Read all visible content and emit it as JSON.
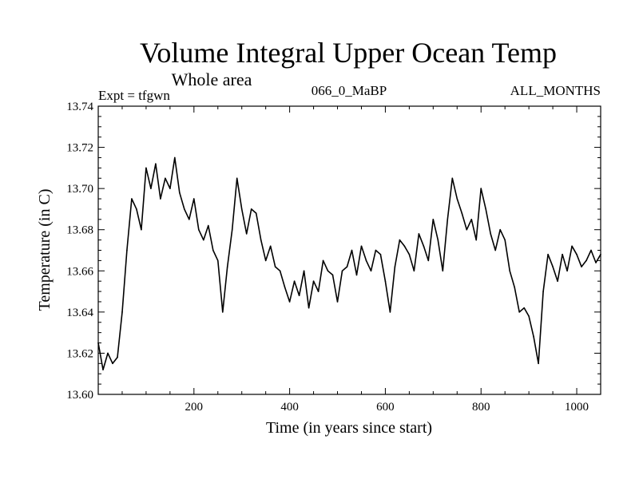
{
  "chart_data": {
    "type": "line",
    "title": "Volume Integral Upper Ocean Temp",
    "subtitle": "Whole area",
    "header_left": "Expt = tfgwn",
    "header_center": "066_0_MaBP",
    "header_right": "ALL_MONTHS",
    "xlabel": "Time (in years since start)",
    "ylabel": "Temperature (in C)",
    "xlim": [
      0,
      1050
    ],
    "ylim": [
      13.6,
      13.74
    ],
    "x_ticks": [
      200,
      400,
      600,
      800,
      1000
    ],
    "y_ticks": [
      13.6,
      13.62,
      13.64,
      13.66,
      13.68,
      13.7,
      13.72,
      13.74
    ],
    "y_tick_labels": [
      "13.60",
      "13.62",
      "13.64",
      "13.66",
      "13.68",
      "13.70",
      "13.72",
      "13.74"
    ],
    "series": [
      {
        "name": "tfgwn",
        "color": "#000000",
        "x": [
          0,
          10,
          20,
          30,
          40,
          50,
          60,
          70,
          80,
          90,
          100,
          110,
          120,
          130,
          140,
          150,
          160,
          170,
          180,
          190,
          200,
          210,
          220,
          230,
          240,
          250,
          260,
          270,
          280,
          290,
          300,
          310,
          320,
          330,
          340,
          350,
          360,
          370,
          380,
          390,
          400,
          410,
          420,
          430,
          440,
          450,
          460,
          470,
          480,
          490,
          500,
          510,
          520,
          530,
          540,
          550,
          560,
          570,
          580,
          590,
          600,
          610,
          620,
          630,
          640,
          650,
          660,
          670,
          680,
          690,
          700,
          710,
          720,
          730,
          740,
          750,
          760,
          770,
          780,
          790,
          800,
          810,
          820,
          830,
          840,
          850,
          860,
          870,
          880,
          890,
          900,
          910,
          920,
          930,
          940,
          950,
          960,
          970,
          980,
          990,
          1000,
          1010,
          1020,
          1030,
          1040,
          1050
        ],
        "values": [
          13.625,
          13.612,
          13.62,
          13.615,
          13.618,
          13.64,
          13.67,
          13.695,
          13.69,
          13.68,
          13.71,
          13.7,
          13.712,
          13.695,
          13.705,
          13.7,
          13.715,
          13.698,
          13.69,
          13.685,
          13.695,
          13.68,
          13.675,
          13.682,
          13.67,
          13.665,
          13.64,
          13.662,
          13.68,
          13.705,
          13.69,
          13.678,
          13.69,
          13.688,
          13.675,
          13.665,
          13.672,
          13.662,
          13.66,
          13.652,
          13.645,
          13.655,
          13.648,
          13.66,
          13.642,
          13.655,
          13.65,
          13.665,
          13.66,
          13.658,
          13.645,
          13.66,
          13.662,
          13.67,
          13.658,
          13.672,
          13.665,
          13.66,
          13.67,
          13.668,
          13.655,
          13.64,
          13.662,
          13.675,
          13.672,
          13.668,
          13.66,
          13.678,
          13.672,
          13.665,
          13.685,
          13.675,
          13.66,
          13.685,
          13.705,
          13.695,
          13.688,
          13.68,
          13.685,
          13.675,
          13.7,
          13.69,
          13.678,
          13.67,
          13.68,
          13.675,
          13.66,
          13.652,
          13.64,
          13.642,
          13.638,
          13.628,
          13.615,
          13.65,
          13.668,
          13.662,
          13.655,
          13.668,
          13.66,
          13.672,
          13.668,
          13.662,
          13.665,
          13.67,
          13.664,
          13.668
        ]
      }
    ]
  }
}
